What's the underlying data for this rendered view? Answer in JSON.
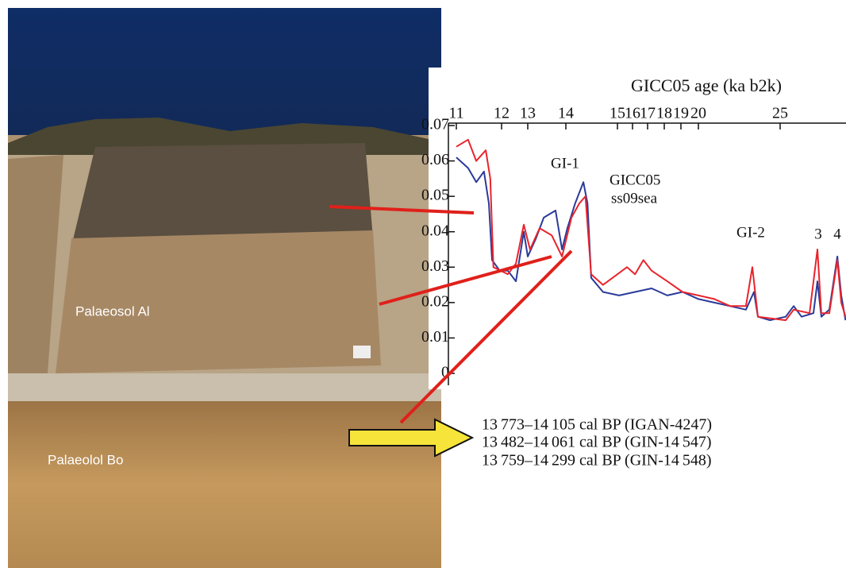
{
  "chart_data": {
    "type": "line",
    "x_label": "GICC05 age (ka b2k)",
    "xlim": [
      10.82,
      29.0
    ],
    "xticks": [
      11,
      12,
      13,
      14,
      15,
      16,
      17,
      18,
      19,
      20,
      25
    ],
    "ylim": [
      0,
      0.07
    ],
    "yticks": [
      0,
      0.01,
      0.02,
      0.03,
      0.04,
      0.05,
      0.06,
      0.07
    ],
    "series": [
      {
        "name": "GICC05",
        "color": "#2a3a9a",
        "x": [
          11.0,
          11.26,
          11.44,
          11.61,
          11.72,
          11.79,
          11.96,
          12.24,
          12.55,
          12.85,
          13.0,
          13.21,
          13.42,
          13.73,
          13.9,
          14.03,
          14.18,
          14.34,
          14.42,
          14.49,
          14.72,
          15.11,
          16.17,
          17.24,
          18.18,
          19.09,
          20.0,
          20.97,
          21.94,
          22.91,
          23.4,
          23.64,
          24.37,
          25.34,
          25.83,
          26.31,
          27.04,
          27.28,
          27.52,
          28.01,
          28.5,
          28.74,
          29.0
        ],
        "values": [
          0.061,
          0.058,
          0.054,
          0.057,
          0.048,
          0.032,
          0.029,
          0.029,
          0.026,
          0.04,
          0.033,
          0.038,
          0.044,
          0.046,
          0.035,
          0.041,
          0.048,
          0.054,
          0.048,
          0.027,
          0.023,
          0.022,
          0.023,
          0.024,
          0.022,
          0.023,
          0.021,
          0.02,
          0.019,
          0.018,
          0.023,
          0.016,
          0.015,
          0.016,
          0.019,
          0.016,
          0.017,
          0.026,
          0.016,
          0.018,
          0.033,
          0.022,
          0.015
        ]
      },
      {
        "name": "ss09sea",
        "color": "#e8242c",
        "x": [
          11.0,
          11.26,
          11.44,
          11.65,
          11.75,
          11.82,
          12.24,
          12.55,
          12.85,
          13.06,
          13.31,
          13.63,
          13.9,
          14.11,
          14.26,
          14.38,
          14.49,
          14.72,
          15.63,
          16.17,
          16.72,
          17.24,
          18.18,
          19.09,
          20.0,
          20.97,
          21.94,
          22.91,
          23.3,
          23.64,
          25.34,
          25.83,
          26.8,
          27.28,
          27.52,
          28.01,
          28.5,
          28.74,
          29.0
        ],
        "values": [
          0.064,
          0.066,
          0.06,
          0.063,
          0.055,
          0.03,
          0.028,
          0.031,
          0.042,
          0.035,
          0.041,
          0.039,
          0.033,
          0.044,
          0.048,
          0.05,
          0.028,
          0.025,
          0.03,
          0.028,
          0.032,
          0.029,
          0.026,
          0.023,
          0.022,
          0.021,
          0.019,
          0.019,
          0.03,
          0.016,
          0.015,
          0.018,
          0.017,
          0.035,
          0.017,
          0.017,
          0.032,
          0.02,
          0.016
        ]
      }
    ],
    "annotations": [
      "GI-1",
      "GI-2",
      "3",
      "4"
    ]
  },
  "photo_labels": [
    "Palaeosol Al",
    "Palaeolol Bo"
  ],
  "dates": [
    "13 773–14 105 cal BP (IGAN-4247)",
    "13 482–14 061 cal BP (GIN-14 547)",
    "13 759–14 299 cal BP (GIN-14 548)"
  ]
}
